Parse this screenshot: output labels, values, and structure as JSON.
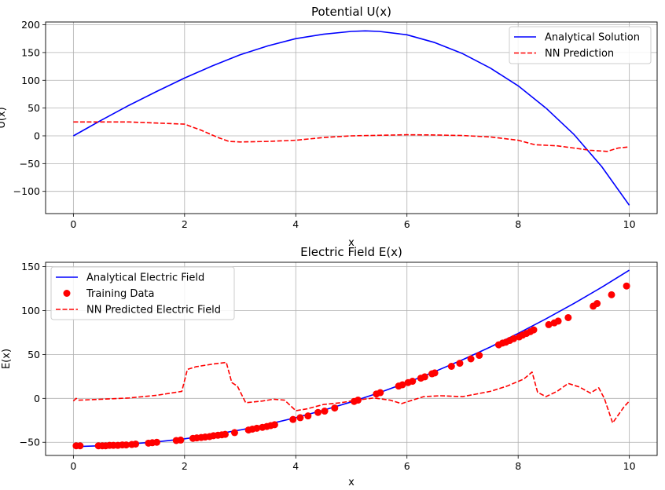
{
  "chart_data": [
    {
      "type": "line",
      "title": "Potential U(x)",
      "xlabel": "x",
      "ylabel": "U(x)",
      "xlim": [
        -0.5,
        10.5
      ],
      "ylim": [
        -140,
        205
      ],
      "xticks": [
        0,
        2,
        4,
        6,
        8,
        10
      ],
      "yticks": [
        -100,
        -50,
        0,
        50,
        100,
        150,
        200
      ],
      "grid": true,
      "legend_position": "top-right",
      "series": [
        {
          "name": "Analytical Solution",
          "style": "solid",
          "color": "#0000ff",
          "x": [
            0,
            0.5,
            1,
            1.5,
            2,
            2.5,
            3,
            3.5,
            4,
            4.5,
            5,
            5.25,
            5.5,
            6,
            6.5,
            7,
            7.5,
            8,
            8.5,
            9,
            9.5,
            10
          ],
          "y": [
            0,
            28,
            55,
            80,
            104,
            126,
            146,
            162,
            175,
            183,
            188,
            189,
            188,
            182,
            168,
            148,
            122,
            90,
            50,
            3,
            -55,
            -125
          ]
        },
        {
          "name": "NN Prediction",
          "style": "dashed",
          "color": "#ff0000",
          "x": [
            0,
            0.5,
            1,
            1.5,
            2,
            2.3,
            2.6,
            2.8,
            3,
            3.5,
            4,
            4.5,
            5,
            5.5,
            6,
            6.5,
            7,
            7.5,
            8,
            8.3,
            8.7,
            9,
            9.3,
            9.6,
            9.8,
            10
          ],
          "y": [
            25,
            25,
            25,
            23,
            21,
            10,
            -3,
            -10,
            -11,
            -10,
            -8,
            -3,
            0,
            1,
            2,
            1.5,
            0.5,
            -2,
            -8,
            -16,
            -18,
            -22,
            -26,
            -28,
            -22,
            -20
          ]
        }
      ]
    },
    {
      "type": "line",
      "title": "Electric Field E(x)",
      "xlabel": "x",
      "ylabel": "E(x)",
      "xlim": [
        -0.5,
        10.5
      ],
      "ylim": [
        -65,
        155
      ],
      "xticks": [
        0,
        2,
        4,
        6,
        8,
        10
      ],
      "yticks": [
        -50,
        0,
        50,
        100,
        150
      ],
      "grid": true,
      "legend_position": "top-left",
      "series": [
        {
          "name": "Analytical Electric Field",
          "style": "solid",
          "color": "#0000ff",
          "x": [
            0,
            0.5,
            1,
            1.5,
            2,
            2.5,
            3,
            3.5,
            4,
            4.5,
            5,
            5.5,
            6,
            6.5,
            7,
            7.5,
            8,
            8.5,
            9,
            9.5,
            10
          ],
          "y": [
            -55,
            -54,
            -52,
            -49.5,
            -46,
            -41.5,
            -36,
            -29.5,
            -22,
            -13.5,
            -4,
            6.5,
            18,
            30.5,
            44,
            58.5,
            74,
            90.5,
            108,
            126.5,
            146
          ]
        },
        {
          "name": "Training Data",
          "style": "scatter",
          "color": "#ff0000",
          "x": [
            0.05,
            0.12,
            0.45,
            0.52,
            0.58,
            0.65,
            0.72,
            0.8,
            0.88,
            0.95,
            1.05,
            1.12,
            1.35,
            1.42,
            1.5,
            1.85,
            1.93,
            2.15,
            2.22,
            2.3,
            2.37,
            2.45,
            2.52,
            2.6,
            2.67,
            2.73,
            2.9,
            3.15,
            3.22,
            3.3,
            3.4,
            3.48,
            3.55,
            3.62,
            3.95,
            4.08,
            4.22,
            4.4,
            4.52,
            4.7,
            5.05,
            5.12,
            5.45,
            5.52,
            5.85,
            5.92,
            6.02,
            6.1,
            6.25,
            6.32,
            6.45,
            6.5,
            6.8,
            6.95,
            7.15,
            7.3,
            7.65,
            7.72,
            7.78,
            7.85,
            7.92,
            8.02,
            8.08,
            8.15,
            8.22,
            8.28,
            8.55,
            8.65,
            8.72,
            8.9,
            9.35,
            9.42,
            9.68,
            9.95
          ],
          "y": [
            -54,
            -54,
            -54,
            -54,
            -54,
            -53.5,
            -53.5,
            -53.5,
            -53,
            -53,
            -52.5,
            -52,
            -51,
            -50.5,
            -50,
            -48,
            -47.5,
            -45.5,
            -45,
            -44.5,
            -44,
            -43.5,
            -42.5,
            -42,
            -41.5,
            -41,
            -39,
            -36,
            -35,
            -34,
            -33,
            -32,
            -31,
            -30,
            -24,
            -22,
            -20,
            -16,
            -14.5,
            -11,
            -3.5,
            -2,
            5,
            6.5,
            14,
            15.5,
            18,
            19.5,
            23,
            24.5,
            28,
            29,
            36.5,
            40,
            45,
            49,
            61,
            63,
            64,
            66,
            68,
            70,
            72,
            74,
            76,
            78,
            84,
            86,
            88,
            92,
            105,
            108,
            118,
            128
          ]
        },
        {
          "name": "NN Predicted Electric Field",
          "style": "dashed",
          "color": "#ff0000",
          "x": [
            0,
            0.05,
            0.1,
            0.5,
            1,
            1.5,
            1.95,
            2.05,
            2.2,
            2.5,
            2.75,
            2.85,
            2.95,
            3.1,
            3.4,
            3.6,
            3.8,
            4,
            4.2,
            4.5,
            4.8,
            5.1,
            5.4,
            5.7,
            5.9,
            6.3,
            6.6,
            7,
            7.5,
            7.8,
            8.1,
            8.25,
            8.35,
            8.5,
            8.7,
            8.9,
            9.1,
            9.3,
            9.45,
            9.55,
            9.7,
            9.9,
            10
          ],
          "y": [
            -3,
            0,
            -2,
            -1,
            0.5,
            3.5,
            8,
            33,
            36,
            39,
            41,
            18,
            14,
            -5,
            -3,
            -1,
            -2,
            -14,
            -12,
            -7,
            -5,
            -2,
            0.5,
            -2,
            -6,
            2,
            3,
            2,
            8,
            14,
            22,
            30,
            7,
            2,
            8,
            17,
            13,
            6,
            12,
            0,
            -28,
            -10,
            -3
          ]
        }
      ]
    }
  ]
}
